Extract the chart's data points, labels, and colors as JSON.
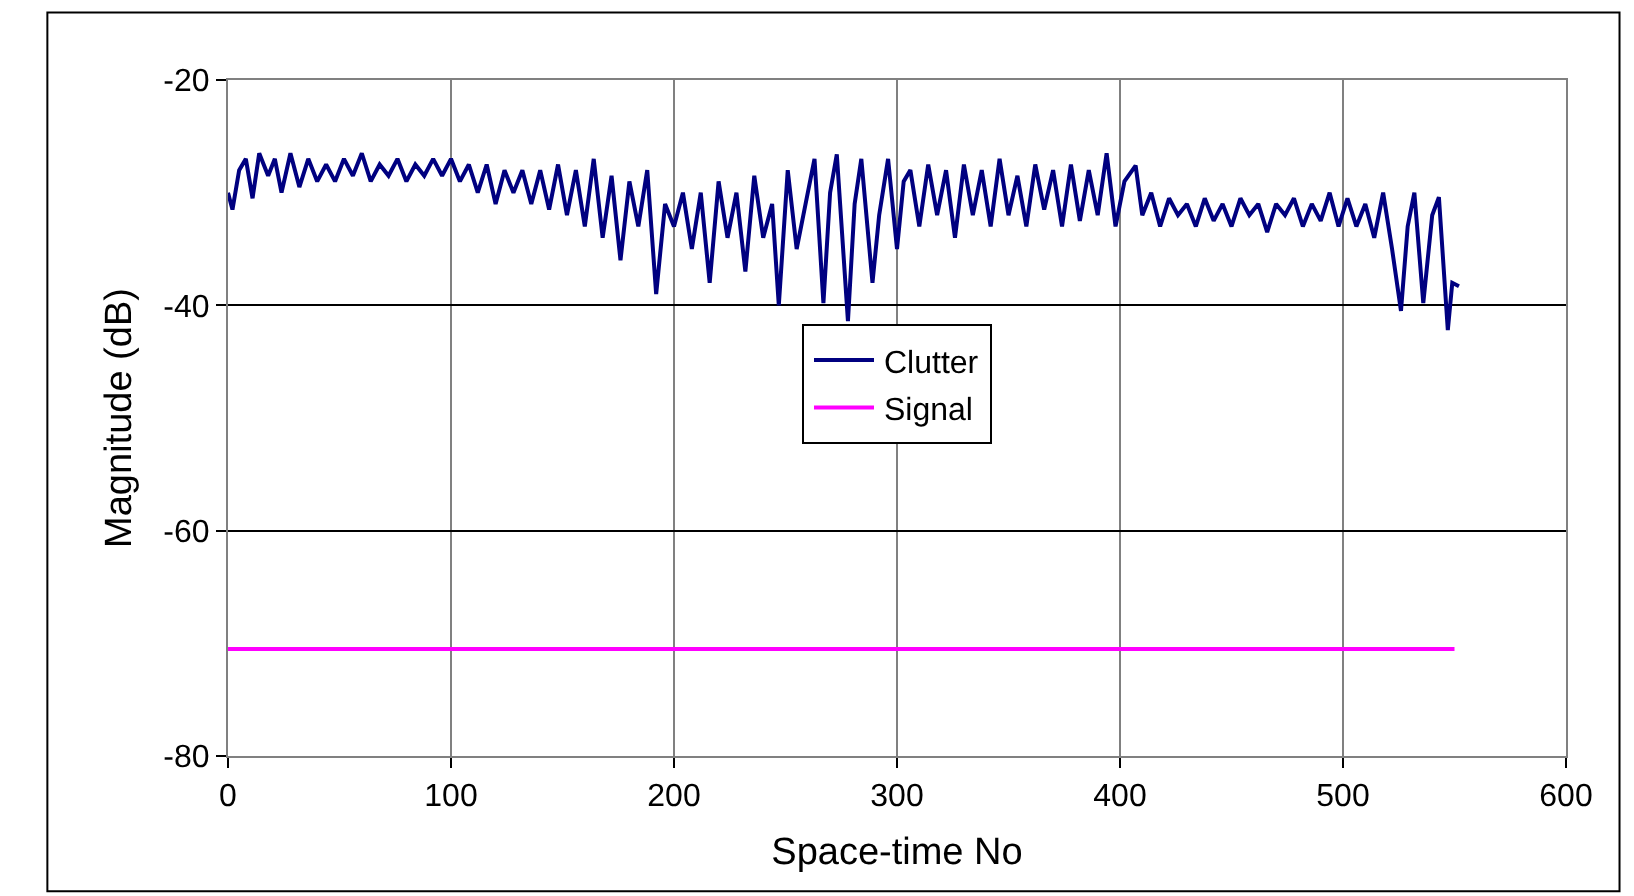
{
  "chart_data": {
    "type": "line",
    "xlabel": "Space-time No",
    "ylabel": "Magnitude (dB)",
    "xlim": [
      0,
      600
    ],
    "xticks": [
      0,
      100,
      200,
      300,
      400,
      500,
      600
    ],
    "ylim": [
      -80,
      -20
    ],
    "yticks": [
      -80,
      -60,
      -40,
      -20
    ],
    "grid": true,
    "legend": "center",
    "marker": "none",
    "line_style": "solid",
    "series": [
      {
        "name": "Clutter",
        "color": "#000080",
        "x": [
          0,
          2,
          5,
          8,
          11,
          14,
          18,
          21,
          24,
          28,
          32,
          36,
          40,
          44,
          48,
          52,
          56,
          60,
          64,
          68,
          72,
          76,
          80,
          84,
          88,
          92,
          96,
          100,
          104,
          108,
          112,
          116,
          120,
          124,
          128,
          132,
          136,
          140,
          144,
          148,
          152,
          156,
          160,
          164,
          168,
          172,
          176,
          180,
          184,
          188,
          192,
          196,
          200,
          204,
          208,
          212,
          216,
          220,
          224,
          228,
          232,
          236,
          240,
          244,
          247,
          251,
          255,
          259,
          263,
          267,
          270,
          273,
          278,
          281,
          284,
          289,
          292,
          296,
          300,
          303,
          306,
          310,
          314,
          318,
          322,
          326,
          330,
          334,
          338,
          342,
          346,
          350,
          354,
          358,
          362,
          366,
          370,
          374,
          378,
          382,
          386,
          390,
          394,
          398,
          402,
          407,
          410,
          414,
          418,
          422,
          426,
          430,
          434,
          438,
          442,
          446,
          450,
          454,
          458,
          462,
          466,
          470,
          474,
          478,
          482,
          486,
          490,
          494,
          498,
          502,
          506,
          510,
          514,
          518,
          522,
          526,
          529,
          532,
          536,
          540,
          543,
          547,
          549,
          552
        ],
        "values": [
          -30,
          -31.5,
          -28,
          -27,
          -30.5,
          -26.5,
          -28.5,
          -27,
          -30,
          -26.5,
          -29.5,
          -27,
          -29,
          -27.5,
          -29,
          -27,
          -28.5,
          -26.5,
          -29,
          -27.5,
          -28.5,
          -27,
          -29,
          -27.5,
          -28.5,
          -27,
          -28.5,
          -27,
          -29,
          -27.5,
          -30,
          -27.5,
          -31,
          -28,
          -30,
          -28,
          -31,
          -28,
          -31.5,
          -27.5,
          -32,
          -28,
          -33,
          -27,
          -34,
          -28.5,
          -36,
          -29,
          -33,
          -28,
          -39,
          -31,
          -33,
          -30,
          -35,
          -30,
          -38,
          -29,
          -34,
          -30,
          -37,
          -28.5,
          -34,
          -31,
          -40,
          -28,
          -35,
          -31,
          -27,
          -39.8,
          -30,
          -26.6,
          -41.4,
          -31,
          -27,
          -38,
          -32,
          -27,
          -35,
          -29,
          -28,
          -33,
          -27.5,
          -32,
          -28,
          -34,
          -27.5,
          -32,
          -28,
          -33,
          -27,
          -32,
          -28.5,
          -33,
          -27.5,
          -31.5,
          -28,
          -33,
          -27.5,
          -32.5,
          -28,
          -32,
          -26.5,
          -33,
          -29,
          -27.6,
          -32,
          -30,
          -33,
          -30.5,
          -32,
          -31,
          -33,
          -30.5,
          -32.5,
          -31,
          -33,
          -30.5,
          -32,
          -31,
          -33.5,
          -31,
          -32,
          -30.5,
          -33,
          -31,
          -32.5,
          -30,
          -33,
          -30.5,
          -33,
          -31,
          -34,
          -30,
          -35,
          -40.5,
          -33,
          -30,
          -39.8,
          -32,
          -30.4,
          -42.2,
          -38,
          -38.3
        ]
      },
      {
        "name": "Signal",
        "color": "#ff00ff",
        "x": [
          0,
          550
        ],
        "values": [
          -70.5,
          -70.5
        ]
      }
    ]
  }
}
